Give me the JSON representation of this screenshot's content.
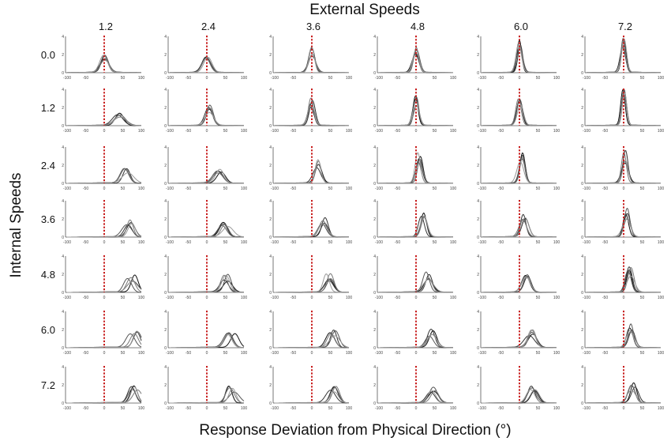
{
  "chart_data": {
    "type": "line",
    "title": "External Speeds",
    "xlabel": "Response Deviation from Physical Direction (°)",
    "ylabel": "Internal Speeds",
    "column_values": [
      "1.2",
      "2.4",
      "3.6",
      "4.8",
      "6.0",
      "7.2"
    ],
    "row_values": [
      "0.0",
      "1.2",
      "2.4",
      "3.6",
      "4.8",
      "6.0",
      "7.2"
    ],
    "xlim": [
      -100,
      100
    ],
    "ylim": [
      0,
      4
    ],
    "x_ticks": [
      "-100",
      "-50",
      "0",
      "50",
      "100"
    ],
    "y_ticks": [
      "0",
      "2",
      "4"
    ],
    "reference_line_x": 0,
    "reference_line_color": "#c81e1e",
    "curve_colors": [
      "#111111",
      "#333333",
      "#555555",
      "#777777",
      "#999999"
    ],
    "peak_deviation_deg": [
      [
        0,
        0,
        0,
        0,
        0,
        0
      ],
      [
        40,
        8,
        0,
        0,
        0,
        0
      ],
      [
        60,
        35,
        15,
        8,
        5,
        4
      ],
      [
        70,
        50,
        30,
        18,
        12,
        8
      ],
      [
        75,
        55,
        45,
        30,
        20,
        15
      ],
      [
        78,
        65,
        55,
        40,
        30,
        22
      ],
      [
        80,
        70,
        60,
        48,
        35,
        25
      ]
    ],
    "peak_height": [
      [
        1.7,
        1.8,
        2.4,
        2.6,
        3.0,
        3.3
      ],
      [
        1.2,
        2.0,
        2.6,
        3.0,
        3.2,
        3.4
      ],
      [
        1.4,
        1.5,
        2.2,
        2.8,
        3.0,
        3.0
      ],
      [
        1.6,
        1.5,
        1.9,
        2.3,
        2.6,
        2.7
      ],
      [
        1.7,
        1.7,
        1.8,
        1.9,
        2.1,
        2.3
      ],
      [
        1.7,
        1.5,
        1.7,
        1.7,
        1.8,
        2.3
      ],
      [
        1.8,
        1.6,
        1.6,
        1.6,
        1.6,
        1.9
      ]
    ]
  }
}
